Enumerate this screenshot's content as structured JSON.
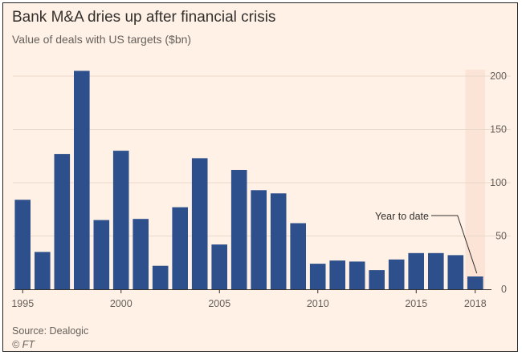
{
  "title": "Bank M&A dries up after financial crisis",
  "subtitle": "Value of deals with US targets ($bn)",
  "source": "Source: Dealogic",
  "credit": "© FT",
  "colors": {
    "background": "#fff1e5",
    "bar": "#2d4f8c",
    "gridline": "#e9d9ca",
    "text": "#66605c",
    "highlight": "#fbe3d6"
  },
  "chart_data": {
    "type": "bar",
    "title": "Bank M&A dries up after financial crisis",
    "subtitle": "Value of deals with US targets ($bn)",
    "categories": [
      1995,
      1996,
      1997,
      1998,
      1999,
      2000,
      2001,
      2002,
      2003,
      2004,
      2005,
      2006,
      2007,
      2008,
      2009,
      2010,
      2011,
      2012,
      2013,
      2014,
      2015,
      2016,
      2017,
      2018
    ],
    "values": [
      84,
      35,
      127,
      205,
      65,
      130,
      66,
      22,
      77,
      123,
      42,
      112,
      93,
      90,
      62,
      24,
      27,
      26,
      18,
      28,
      34,
      34,
      32,
      12
    ],
    "x_tick_labels": [
      "1995",
      "2000",
      "2005",
      "2010",
      "2015",
      "2018"
    ],
    "ylim": [
      0,
      200
    ],
    "y_ticks": [
      0,
      50,
      100,
      150,
      200
    ],
    "y_axis_side": "right",
    "grid": true,
    "annotations": [
      {
        "text": "Year to date",
        "target_category": 2018
      }
    ]
  }
}
